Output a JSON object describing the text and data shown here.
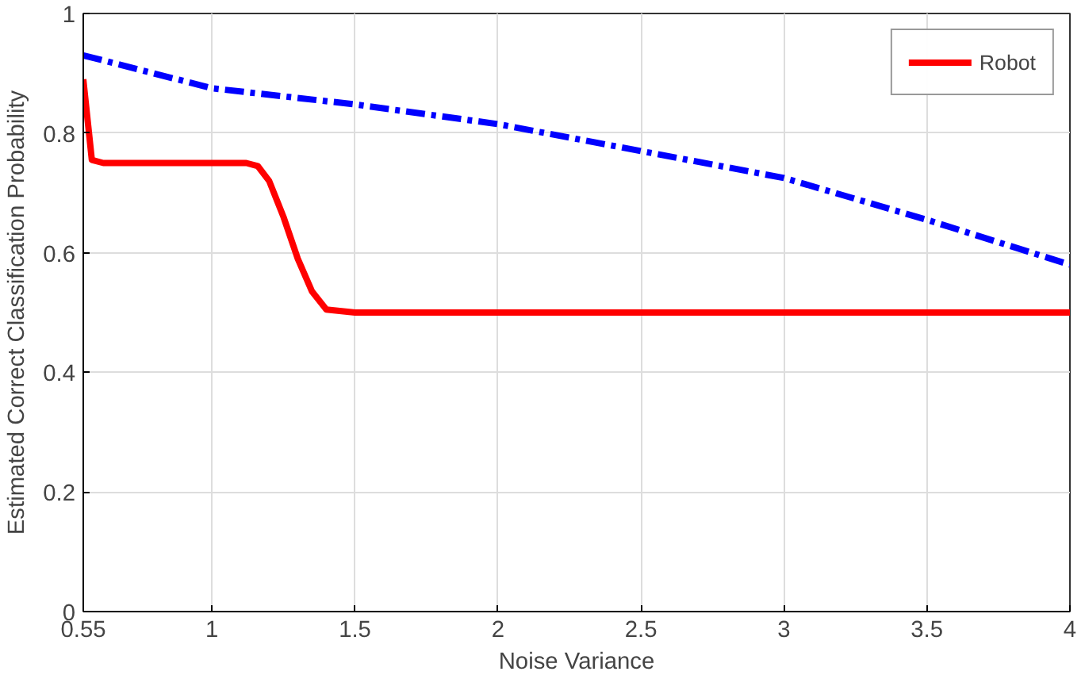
{
  "chart_data": {
    "type": "line",
    "xlabel": "Noise Variance",
    "ylabel": "Estimated Correct Classification Probability",
    "xlim": [
      0.55,
      4
    ],
    "xticks": [
      0.55,
      1,
      1.5,
      2,
      2.5,
      3,
      3.5,
      4
    ],
    "ylim": [
      0,
      1
    ],
    "yticks": [
      0,
      0.2,
      0.4,
      0.6,
      0.8,
      1
    ],
    "grid": true,
    "legend": "top right",
    "series": [
      {
        "name": "Robot",
        "color": "#ff0000",
        "line_style": "solid",
        "x": [
          0.55,
          0.58,
          0.62,
          1.12,
          1.16,
          1.2,
          1.25,
          1.3,
          1.35,
          1.4,
          1.5,
          4
        ],
        "values": [
          0.89,
          0.755,
          0.75,
          0.75,
          0.745,
          0.72,
          0.66,
          0.59,
          0.535,
          0.505,
          0.5,
          0.5
        ]
      },
      {
        "color": "#0000ff",
        "line_style": "dashdot",
        "x": [
          0.55,
          1,
          1.5,
          2,
          2.5,
          3,
          3.5,
          4
        ],
        "values": [
          0.93,
          0.875,
          0.848,
          0.815,
          0.77,
          0.725,
          0.655,
          0.58
        ]
      }
    ]
  }
}
